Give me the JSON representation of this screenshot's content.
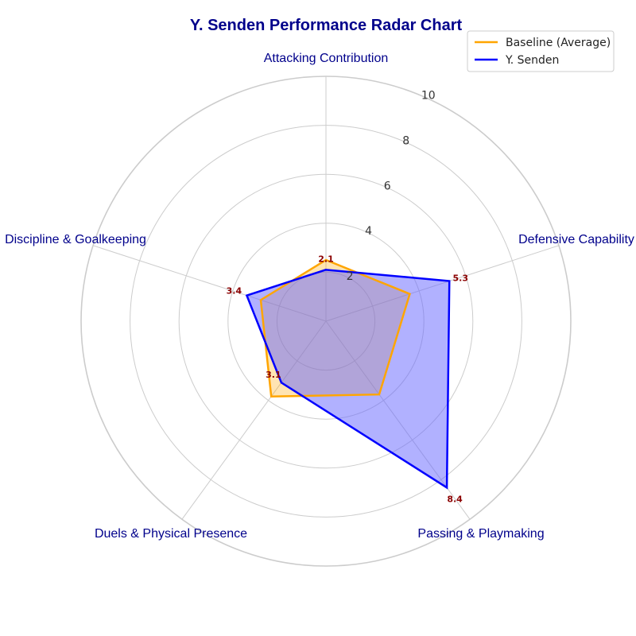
{
  "chart_data": {
    "type": "radar",
    "title": "Y. Senden Performance Radar Chart",
    "categories": [
      "Attacking Contribution",
      "Defensive Capability",
      "Passing & Playmaking",
      "Duels & Physical Presence",
      "Discipline & Goalkeeping"
    ],
    "rlim": [
      0,
      10
    ],
    "r_ticks": [
      "2",
      "4",
      "6",
      "8",
      "10"
    ],
    "grid": true,
    "legend_position": "top-right",
    "series": [
      {
        "name": "Baseline (Average)",
        "values": [
          2.5,
          3.6,
          3.7,
          3.8,
          2.8
        ],
        "color": "#ffa500",
        "fill": "#ffa500"
      },
      {
        "name": "Y. Senden",
        "values": [
          2.1,
          5.3,
          8.4,
          3.1,
          3.4
        ],
        "color": "#0000ff",
        "fill": "#6464ff"
      }
    ],
    "data_labels": [
      "2.1",
      "5.3",
      "8.4",
      "3.1",
      "3.4"
    ]
  }
}
